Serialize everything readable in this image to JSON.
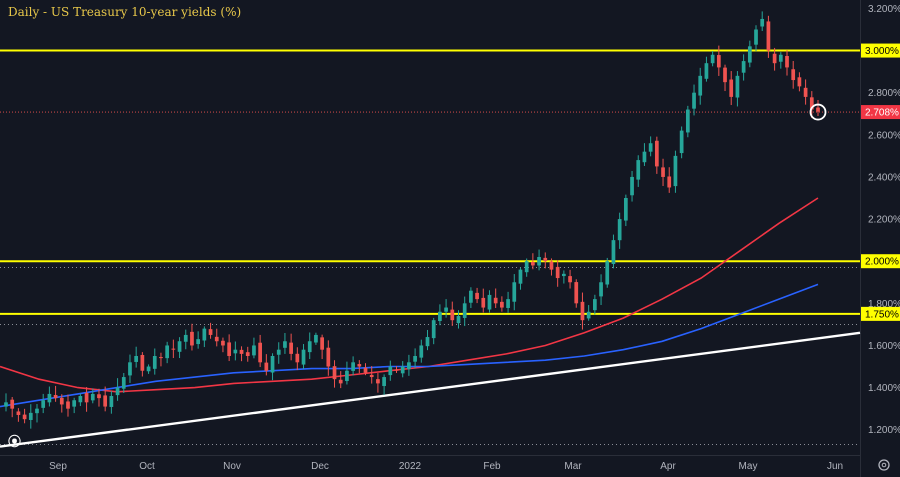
{
  "chart_data": {
    "type": "candlestick",
    "title": "Daily - US Treasury 10-year yields (%)",
    "y_unit": "%",
    "ylim": [
      1.08,
      3.24
    ],
    "y_ticks": [
      "1.200%",
      "1.400%",
      "1.600%",
      "1.800%",
      "2.000%",
      "2.200%",
      "2.400%",
      "2.600%",
      "2.800%",
      "3.000%",
      "3.200%"
    ],
    "x_labels": [
      "Sep",
      "Oct",
      "Nov",
      "Dec",
      "2022",
      "Feb",
      "Mar",
      "Apr",
      "May",
      "Jun"
    ],
    "last_price": {
      "label": "2.708%",
      "value": 2.708
    },
    "horizontal_levels": [
      {
        "label": "3.000%",
        "value": 3.0,
        "color": "#ffff00"
      },
      {
        "label": "2.000%",
        "value": 2.0,
        "color": "#ffff00"
      },
      {
        "label": "1.750%",
        "value": 1.75,
        "color": "#ffff00"
      }
    ],
    "dotted_levels": [
      1.97,
      1.7,
      1.13
    ],
    "trendline": {
      "color": "#ffffff",
      "start": {
        "date": "Aug 2021",
        "value": 1.12
      },
      "end": {
        "date": "Jun 2022",
        "value": 1.66
      }
    },
    "series": [
      {
        "name": "",
        "color": "#f23645",
        "type": "line",
        "points": [
          1.5,
          1.44,
          1.4,
          1.38,
          1.39,
          1.4,
          1.42,
          1.43,
          1.44,
          1.46,
          1.48,
          1.5,
          1.53,
          1.56,
          1.6,
          1.66,
          1.73,
          1.82,
          1.92,
          2.05,
          2.18,
          2.3
        ]
      },
      {
        "name": "",
        "color": "#2962ff",
        "type": "line",
        "points": [
          1.31,
          1.34,
          1.37,
          1.4,
          1.43,
          1.45,
          1.47,
          1.48,
          1.49,
          1.49,
          1.5,
          1.5,
          1.51,
          1.52,
          1.53,
          1.55,
          1.58,
          1.62,
          1.68,
          1.75,
          1.82,
          1.89
        ]
      }
    ],
    "closes": [
      1.33,
      1.3,
      1.27,
      1.25,
      1.28,
      1.3,
      1.34,
      1.37,
      1.35,
      1.32,
      1.3,
      1.34,
      1.36,
      1.33,
      1.37,
      1.35,
      1.31,
      1.36,
      1.4,
      1.45,
      1.52,
      1.55,
      1.48,
      1.5,
      1.55,
      1.54,
      1.6,
      1.58,
      1.62,
      1.65,
      1.6,
      1.63,
      1.68,
      1.65,
      1.62,
      1.6,
      1.55,
      1.58,
      1.56,
      1.55,
      1.6,
      1.52,
      1.48,
      1.55,
      1.58,
      1.62,
      1.56,
      1.52,
      1.58,
      1.62,
      1.65,
      1.58,
      1.5,
      1.44,
      1.42,
      1.48,
      1.52,
      1.5,
      1.47,
      1.45,
      1.42,
      1.45,
      1.5,
      1.48,
      1.5,
      1.52,
      1.55,
      1.6,
      1.64,
      1.72,
      1.76,
      1.78,
      1.72,
      1.74,
      1.8,
      1.86,
      1.82,
      1.78,
      1.84,
      1.8,
      1.78,
      1.82,
      1.9,
      1.96,
      2.0,
      1.98,
      2.02,
      2.0,
      1.96,
      1.92,
      1.94,
      1.9,
      1.8,
      1.72,
      1.76,
      1.82,
      1.9,
      2.0,
      2.1,
      2.2,
      2.3,
      2.4,
      2.48,
      2.52,
      2.56,
      2.45,
      2.4,
      2.35,
      2.5,
      2.62,
      2.72,
      2.8,
      2.88,
      2.94,
      2.98,
      2.92,
      2.85,
      2.78,
      2.88,
      2.95,
      3.02,
      3.1,
      3.15,
      3.0,
      2.94,
      2.98,
      2.92,
      2.86,
      2.83,
      2.78,
      2.72,
      2.71
    ]
  }
}
